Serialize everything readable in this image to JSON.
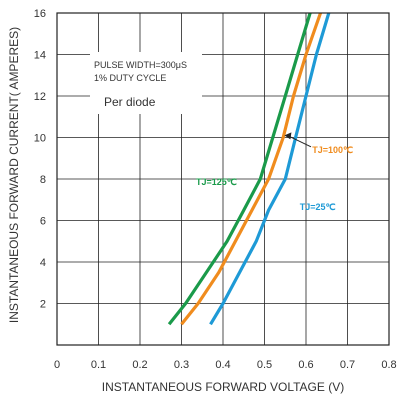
{
  "chart_data": {
    "type": "line",
    "xlabel": "INSTANTANEOUS FORWARD VOLTAGE (V)",
    "ylabel": "INSTANTANEOUS FORWARD CURRENT( AMPERES)",
    "xlim": [
      0,
      0.8
    ],
    "ylim": [
      0,
      16
    ],
    "x_ticks": [
      "0",
      "0.1",
      "0.2",
      "0.3",
      "0.4",
      "0.5",
      "0.6",
      "0.7",
      "0.8"
    ],
    "y_ticks": [
      "2",
      "4",
      "6",
      "8",
      "10",
      "12",
      "14",
      "16"
    ],
    "grid": true,
    "annotations": [
      "PULSE WIDTH=300μS",
      "1% DUTY CYCLE",
      "Per diode"
    ],
    "series": [
      {
        "name": "TJ=125℃",
        "color": "#1a9a4a",
        "points": [
          [
            0.27,
            1.0
          ],
          [
            0.31,
            2.0
          ],
          [
            0.36,
            3.5
          ],
          [
            0.41,
            5.0
          ],
          [
            0.45,
            6.5
          ],
          [
            0.49,
            8.0
          ],
          [
            0.52,
            10.0
          ],
          [
            0.55,
            12.0
          ],
          [
            0.58,
            14.0
          ],
          [
            0.61,
            16.0
          ]
        ]
      },
      {
        "name": "TJ=100℃",
        "color": "#f08c1e",
        "points": [
          [
            0.3,
            1.0
          ],
          [
            0.34,
            2.0
          ],
          [
            0.39,
            3.5
          ],
          [
            0.43,
            5.0
          ],
          [
            0.47,
            6.5
          ],
          [
            0.51,
            8.0
          ],
          [
            0.545,
            10.0
          ],
          [
            0.57,
            12.0
          ],
          [
            0.6,
            14.0
          ],
          [
            0.635,
            16.0
          ]
        ]
      },
      {
        "name": "TJ=25℃",
        "color": "#1e9ad6",
        "points": [
          [
            0.37,
            1.0
          ],
          [
            0.4,
            2.0
          ],
          [
            0.44,
            3.5
          ],
          [
            0.48,
            5.0
          ],
          [
            0.51,
            6.5
          ],
          [
            0.55,
            8.0
          ],
          [
            0.575,
            10.0
          ],
          [
            0.6,
            12.0
          ],
          [
            0.625,
            14.0
          ],
          [
            0.655,
            16.0
          ]
        ]
      }
    ]
  }
}
